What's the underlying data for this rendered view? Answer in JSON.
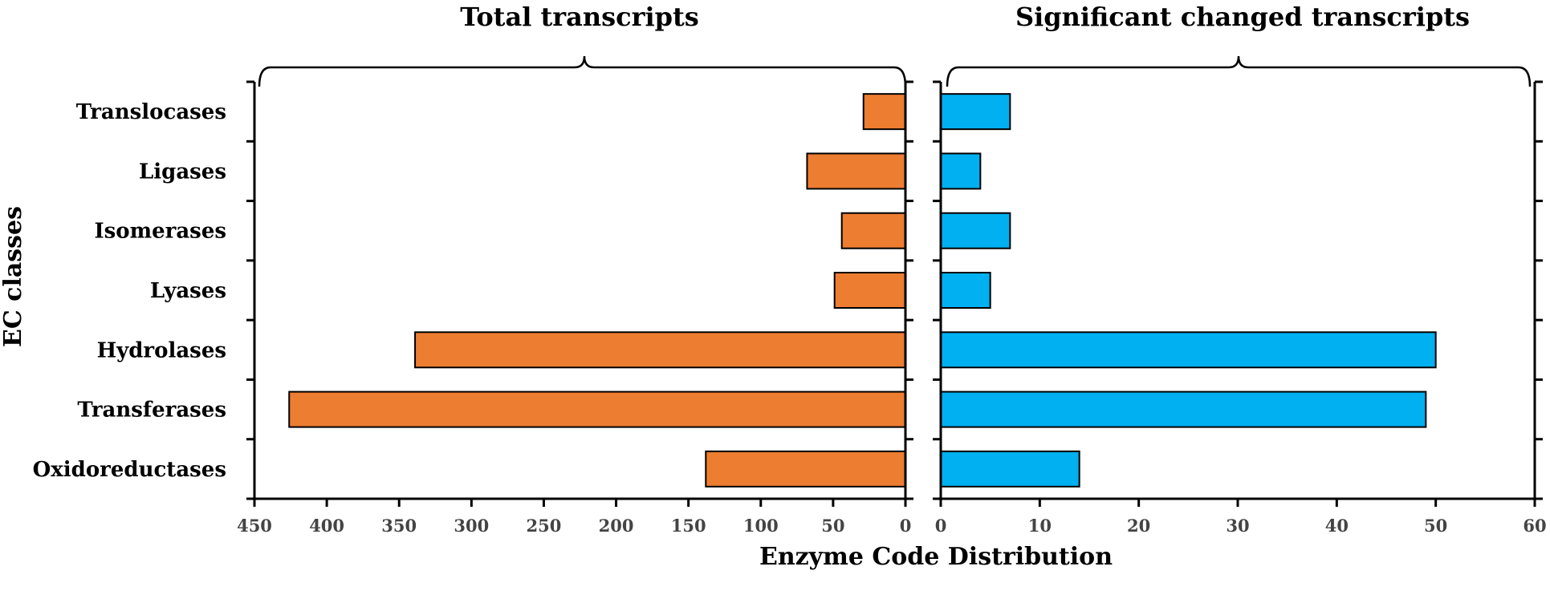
{
  "chart_data": {
    "type": "bar",
    "orientation": "horizontal",
    "categories": [
      "Translocases",
      "Ligases",
      "Isomerases",
      "Lyases",
      "Hydrolases",
      "Transferases",
      "Oxidoreductases"
    ],
    "ylabel": "EC classes",
    "xlabel": "Enzyme Code Distribution",
    "panels": [
      {
        "title": "Total transcripts",
        "direction": "reversed",
        "color": "#ED7D31",
        "xlim": [
          450,
          0
        ],
        "ticks": [
          450,
          400,
          350,
          300,
          250,
          200,
          150,
          100,
          50,
          0
        ],
        "values": [
          29,
          68,
          44,
          49,
          339,
          426,
          138
        ]
      },
      {
        "title": "Significant changed transcripts",
        "direction": "normal",
        "color": "#00B0F0",
        "xlim": [
          0,
          60
        ],
        "ticks": [
          0,
          10,
          20,
          30,
          40,
          50,
          60
        ],
        "values": [
          7,
          4,
          7,
          5,
          50,
          49,
          14
        ]
      }
    ]
  }
}
